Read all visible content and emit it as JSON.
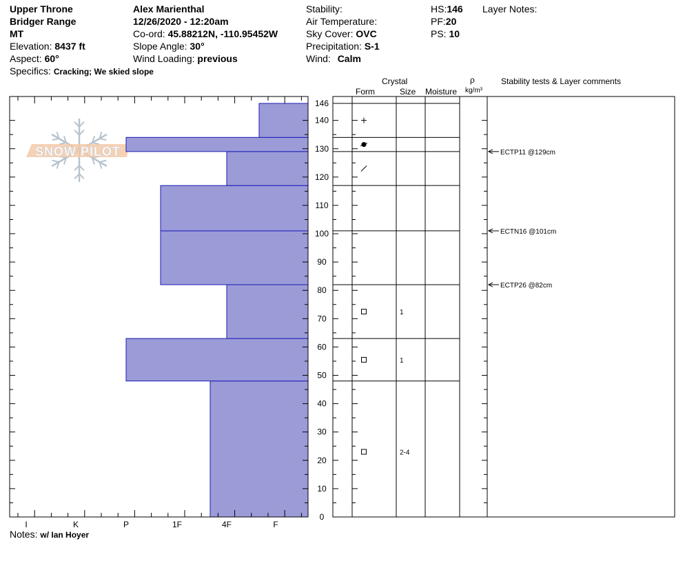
{
  "header": {
    "location_line1": "Upper Throne",
    "location_line2": "Bridger Range",
    "state": "MT",
    "elevation_label": "Elevation:",
    "elevation_value": "8437 ft",
    "aspect_label": "Aspect:",
    "aspect_value": "60°",
    "specifics_label": "Specifics:",
    "specifics_value": "Cracking; We skied slope",
    "observer": "Alex Marienthal",
    "datetime": "12/26/2020 - 12:20am",
    "coord_label": "Co-ord:",
    "coord_value": "45.88212N, -110.95452W",
    "slope_label": "Slope Angle:",
    "slope_value": "30°",
    "wind_loading_label": "Wind Loading:",
    "wind_loading_value": "previous",
    "stability_label": "Stability:",
    "stability_value": "",
    "air_temp_label": "Air Temperature:",
    "air_temp_value": "",
    "sky_label": "Sky Cover:",
    "sky_value": "OVC",
    "precip_label": "Precipitation:",
    "precip_value": "S-1",
    "wind_label": "Wind:",
    "wind_value": "Calm",
    "hs_label": "HS:",
    "hs_value": "146",
    "pf_label": "PF:",
    "pf_value": "20",
    "ps_label": "PS:",
    "ps_value": "10",
    "layer_notes_label": "Layer Notes:"
  },
  "columns": {
    "crystal": "Crystal",
    "form": "Form",
    "size": "Size",
    "moisture": "Moisture",
    "rho": "ρ",
    "density_unit": "kg/m³",
    "stability_tests": "Stability tests & Layer comments"
  },
  "watermark": "SNOW PILOT",
  "notes_label": "Notes:",
  "notes_value": "w/ Ian Hoyer",
  "chart_data": {
    "type": "bar",
    "orientation": "horizontal",
    "y_unit": "cm",
    "ylim": [
      0,
      146
    ],
    "y_ticks": [
      0,
      10,
      20,
      30,
      40,
      50,
      60,
      70,
      80,
      90,
      100,
      110,
      120,
      130,
      140,
      146
    ],
    "hardness_scale": [
      "I",
      "K",
      "P",
      "1F",
      "4F",
      "F"
    ],
    "layers": [
      {
        "bottom": 0,
        "top": 48,
        "hardness": "4F+",
        "form": "square",
        "size": "2-4"
      },
      {
        "bottom": 48,
        "top": 63,
        "hardness": "P",
        "form": "square",
        "size": "1"
      },
      {
        "bottom": 63,
        "top": 82,
        "hardness": "4F",
        "form": "square",
        "size": "1"
      },
      {
        "bottom": 82,
        "top": 101,
        "hardness": "1F+",
        "form": "",
        "size": ""
      },
      {
        "bottom": 101,
        "top": 117,
        "hardness": "1F+",
        "form": "",
        "size": ""
      },
      {
        "bottom": 117,
        "top": 129,
        "hardness": "4F",
        "form": "slash",
        "size": ""
      },
      {
        "bottom": 129,
        "top": 134,
        "hardness": "P",
        "form": "blob",
        "size": ""
      },
      {
        "bottom": 134,
        "top": 146,
        "hardness": "F+",
        "form": "plus",
        "size": ""
      }
    ],
    "stability_tests": [
      {
        "depth": 129,
        "label": "ECTP11 @129cm"
      },
      {
        "depth": 101,
        "label": "ECTN16 @101cm"
      },
      {
        "depth": 82,
        "label": "ECTP26 @82cm"
      }
    ]
  }
}
